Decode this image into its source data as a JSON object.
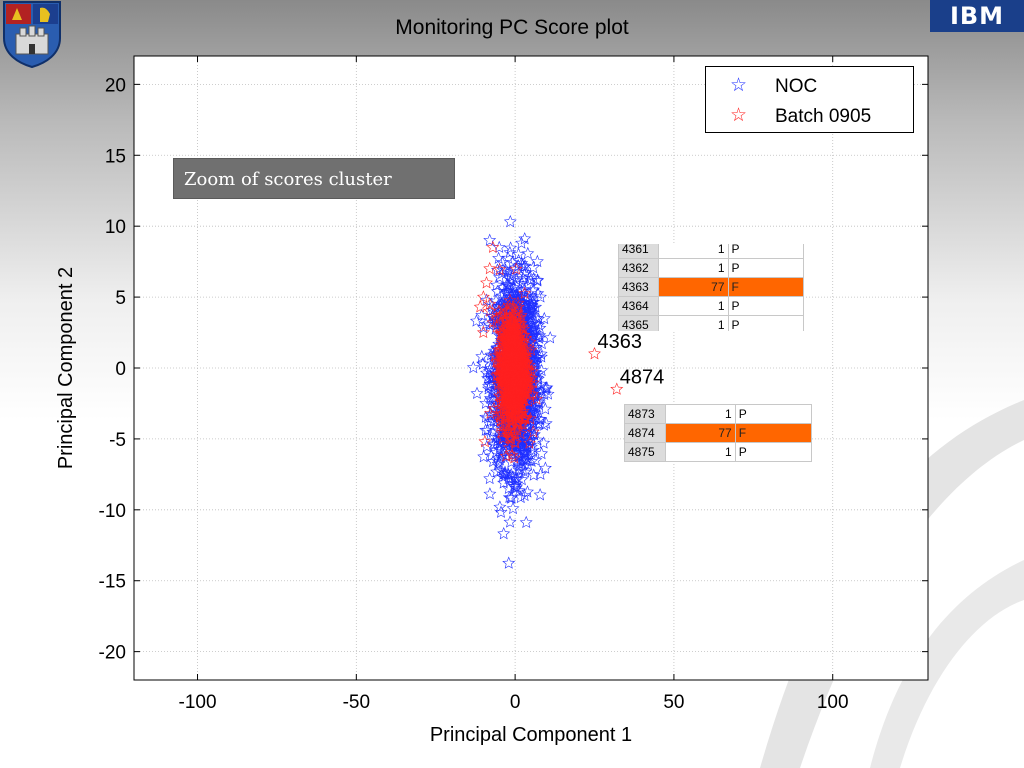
{
  "colors": {
    "noc": "#1f2fff",
    "batch": "#ff2020",
    "highlight": "#ff6600",
    "zoom_box": "#707070"
  },
  "icons": {
    "left_logo": "university-crest-icon",
    "right_logo": "ibm-logo-icon",
    "legend_star": "star-icon"
  },
  "logo": {
    "right_text": "IBM"
  },
  "annotation": {
    "zoom_label": "Zoom of scores cluster"
  },
  "tables": {
    "top": {
      "rows": [
        {
          "id": "4361",
          "value": "1",
          "flag": "P",
          "highlight": false
        },
        {
          "id": "4362",
          "value": "1",
          "flag": "P",
          "highlight": false
        },
        {
          "id": "4363",
          "value": "77",
          "flag": "F",
          "highlight": true
        },
        {
          "id": "4364",
          "value": "1",
          "flag": "P",
          "highlight": false
        },
        {
          "id": "4365",
          "value": "1",
          "flag": "P",
          "highlight": false
        }
      ]
    },
    "bottom": {
      "rows": [
        {
          "id": "4873",
          "value": "1",
          "flag": "P",
          "highlight": false
        },
        {
          "id": "4874",
          "value": "77",
          "flag": "F",
          "highlight": true
        },
        {
          "id": "4875",
          "value": "1",
          "flag": "P",
          "highlight": false
        }
      ]
    }
  },
  "chart_data": {
    "type": "scatter",
    "title": "Monitoring PC Score plot",
    "xlabel": "Principal Component 1",
    "ylabel": "Principal Component 2",
    "xlim": [
      -120,
      130
    ],
    "ylim": [
      -22,
      22
    ],
    "xticks": [
      -100,
      -50,
      0,
      50,
      100
    ],
    "xtick_labels": [
      "-100",
      "-50",
      "0",
      "50",
      "100"
    ],
    "yticks": [
      -20,
      -15,
      -10,
      -5,
      0,
      5,
      10,
      15,
      20
    ],
    "ytick_labels": [
      "-20",
      "-15",
      "-10",
      "-5",
      "0",
      "5",
      "10",
      "15",
      "20"
    ],
    "grid": true,
    "legend": {
      "position": "top-right",
      "entries": [
        {
          "label": "NOC",
          "marker": "star",
          "color": "#1f2fff"
        },
        {
          "label": "Batch 0905",
          "marker": "star",
          "color": "#ff2020"
        }
      ]
    },
    "series": [
      {
        "name": "NOC",
        "marker": "star",
        "color": "#1f2fff",
        "cluster": {
          "x_mean": 0,
          "x_sd": 3.5,
          "y_mean": -0.5,
          "y_sd": 3.3,
          "count": 1600
        },
        "points": [
          {
            "x": -8,
            "y": 9
          },
          {
            "x": -5,
            "y": 8.5
          },
          {
            "x": 2,
            "y": 8.8
          },
          {
            "x": 7,
            "y": 7.5
          },
          {
            "x": 8,
            "y": 5
          },
          {
            "x": -12,
            "y": -1.8
          },
          {
            "x": 9,
            "y": -5.3
          },
          {
            "x": 8,
            "y": -7.5
          },
          {
            "x": -8,
            "y": -7.8
          },
          {
            "x": 3,
            "y": -9
          },
          {
            "x": 3.5,
            "y": -10.9
          },
          {
            "x": -2,
            "y": -8.5
          }
        ]
      },
      {
        "name": "Batch 0905",
        "marker": "star",
        "color": "#ff2020",
        "cluster": {
          "x_mean": -0.5,
          "x_sd": 2.2,
          "y_mean": -0.2,
          "y_sd": 2.0,
          "count": 900
        },
        "points": [
          {
            "x": -7,
            "y": 8.5
          },
          {
            "x": -8,
            "y": 7
          },
          {
            "x": -9,
            "y": 6
          },
          {
            "x": -10,
            "y": 5
          },
          {
            "x": -11,
            "y": 4.3
          },
          {
            "x": -8,
            "y": 4.5
          },
          {
            "x": -7,
            "y": 3.2
          },
          {
            "x": -10,
            "y": 2.5
          },
          {
            "x": -9.5,
            "y": -5.2
          },
          {
            "x": 25,
            "y": 1
          },
          {
            "x": 32,
            "y": -1.5
          }
        ]
      }
    ],
    "annotations": [
      {
        "text": "4363",
        "x": 25,
        "y": 1
      },
      {
        "text": "4874",
        "x": 32,
        "y": -1.5
      }
    ]
  }
}
